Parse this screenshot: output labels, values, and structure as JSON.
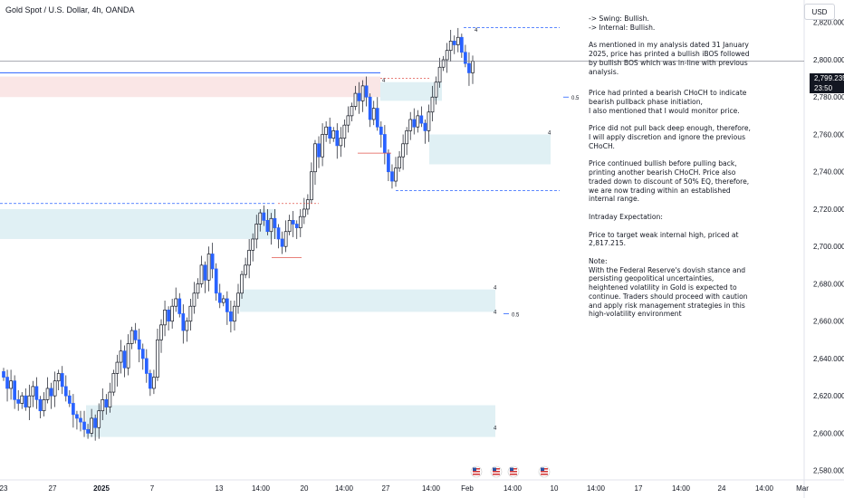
{
  "header": {
    "symbol": "Gold Spot / U.S. Dollar, 4h, OANDA",
    "currency": "USD"
  },
  "price_tag": {
    "price": "2,799.235",
    "countdown": "23:50"
  },
  "notes": {
    "swing": "-> Swing:  Bullish.",
    "internal": "-> Internal:  Bullish.",
    "p1": "As mentioned in my analysis dated 31 January 2025, price has printed a bullish iBOS followed by bullish BOS which was in-line with previous analysis.",
    "p2": "Price had printed a bearish CHoCH to indicate bearish pullback phase initiation,\nI also mentioned that I would monitor price.",
    "p3": "Price did not pull back deep enough, therefore,  I will apply discretion and ignore the previous CHoCH.",
    "p4": "Price continued bullish before pulling back, printing another bearish CHoCH.  Price also traded down to discount of 50% EQ, therefore, we are now trading within an established internal range.",
    "p5": "Intraday Expectation:",
    "p6": "Price to target weak internal high, priced at 2,817.215.",
    "p7": "Note:\nWith the Federal Reserve's dovish stance and persisting geopolitical uncertainties, heightened volatility in Gold is expected to continue. Traders should proceed with caution and apply risk management strategies in this high-volatility environment"
  },
  "chart_data": {
    "type": "candlestick",
    "title": "Gold Spot / U.S. Dollar, 4h, OANDA",
    "ylim": [
      2575,
      2832
    ],
    "y_ticks": [
      2580,
      2600,
      2620,
      2640,
      2660,
      2680,
      2700,
      2720,
      2740,
      2760,
      2780,
      2800,
      2820
    ],
    "y_tick_labels": [
      "2,580.000",
      "2,600.000",
      "2,620.000",
      "2,640.000",
      "2,660.000",
      "2,680.000",
      "2,700.000",
      "2,720.000",
      "2,740.000",
      "2,760.000",
      "2,780.000",
      "2,800.000",
      "2,820.000"
    ],
    "x_tick_labels": [
      "23",
      "27",
      "2025",
      "7",
      "13",
      "14:00",
      "20",
      "14:00",
      "27",
      "14:00",
      "Feb",
      "14:00",
      "10",
      "14:00",
      "17",
      "14:00",
      "24",
      "14:00",
      "Mar"
    ],
    "last_price": 2799.235,
    "closes": [
      2630,
      2624,
      2628,
      2618,
      2616,
      2620,
      2614,
      2620,
      2625,
      2618,
      2612,
      2618,
      2624,
      2620,
      2628,
      2632,
      2625,
      2620,
      2616,
      2610,
      2608,
      2606,
      2602,
      2600,
      2608,
      2603,
      2612,
      2618,
      2614,
      2622,
      2632,
      2638,
      2644,
      2635,
      2648,
      2655,
      2650,
      2645,
      2640,
      2632,
      2624,
      2630,
      2650,
      2658,
      2666,
      2660,
      2668,
      2672,
      2664,
      2655,
      2660,
      2668,
      2675,
      2680,
      2690,
      2682,
      2696,
      2688,
      2675,
      2670,
      2672,
      2665,
      2660,
      2668,
      2675,
      2685,
      2690,
      2698,
      2704,
      2712,
      2718,
      2714,
      2708,
      2715,
      2710,
      2704,
      2700,
      2708,
      2714,
      2712,
      2710,
      2716,
      2720,
      2725,
      2740,
      2755,
      2748,
      2760,
      2764,
      2758,
      2762,
      2754,
      2758,
      2765,
      2770,
      2775,
      2782,
      2778,
      2786,
      2780,
      2768,
      2774,
      2764,
      2760,
      2750,
      2740,
      2735,
      2742,
      2748,
      2755,
      2762,
      2768,
      2764,
      2770,
      2766,
      2762,
      2772,
      2780,
      2788,
      2796,
      2800,
      2805,
      2810,
      2808,
      2812,
      2804,
      2798,
      2793,
      2799.235
    ],
    "series": [
      {
        "name": "Demand zones",
        "values": [
          2704,
          2720,
          2665,
          2677,
          2598,
          2615,
          2744,
          2760,
          2778,
          2788
        ]
      },
      {
        "name": "Supply zone",
        "values": [
          2780,
          2791
        ]
      },
      {
        "name": "Weak internal high",
        "values": [
          2817.215
        ]
      },
      {
        "name": "Range low",
        "values": [
          2730
        ]
      },
      {
        "name": "EQ 0.5",
        "values": [
          2664,
          2780
        ]
      }
    ]
  }
}
